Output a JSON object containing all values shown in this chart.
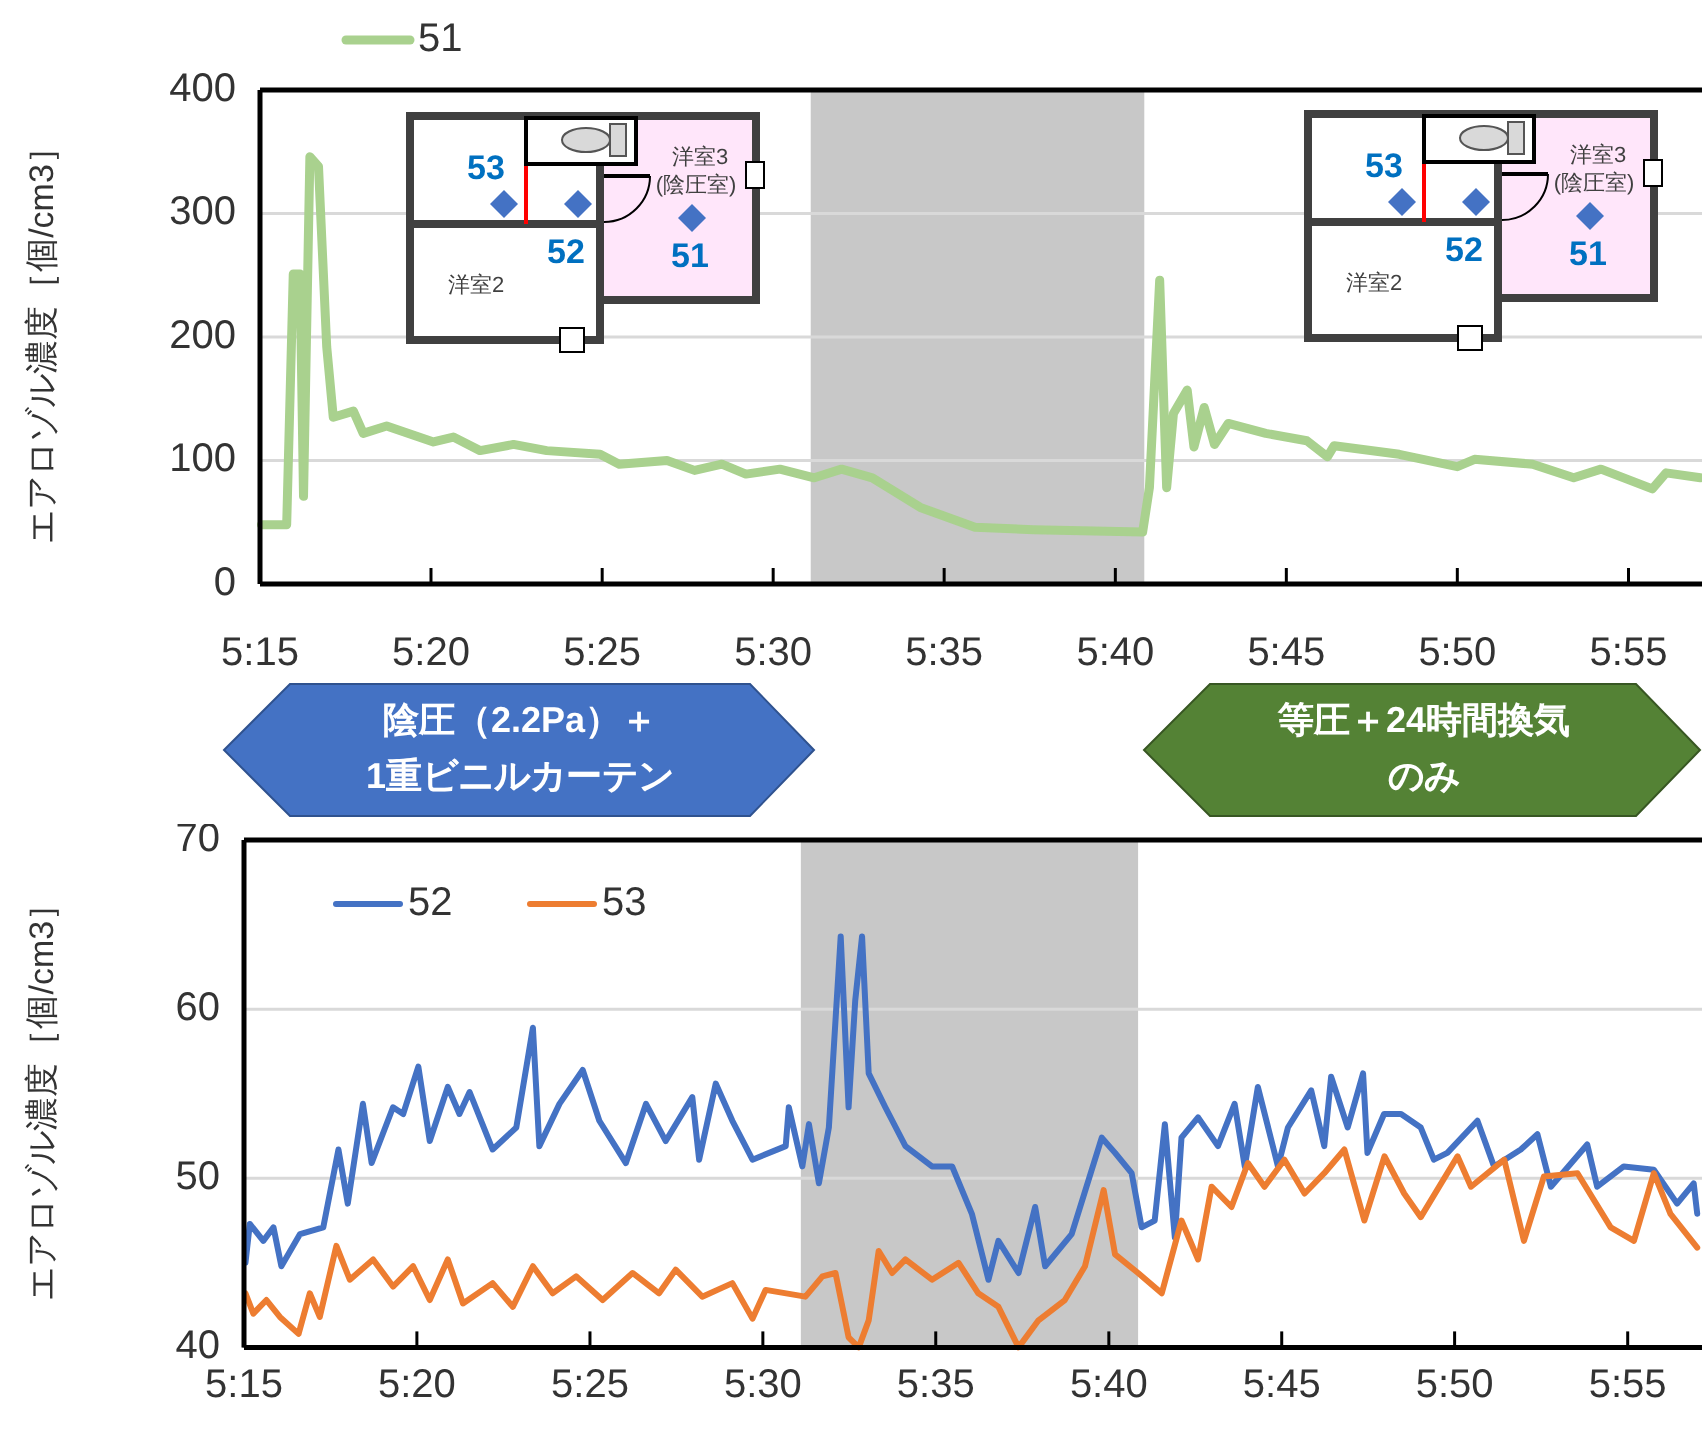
{
  "chart_data": [
    {
      "type": "line",
      "ylabel": "エアロゾル濃度［個/cm3］",
      "xlim": [
        5.25,
        5.9525
      ],
      "ylim": [
        0,
        400
      ],
      "yticks": [
        0,
        100,
        200,
        300,
        400
      ],
      "xticks": [
        {
          "value": 5.25,
          "label": "5:15"
        },
        {
          "value": 5.3333,
          "label": "5:20"
        },
        {
          "value": 5.4167,
          "label": "5:25"
        },
        {
          "value": 5.5,
          "label": "5:30"
        },
        {
          "value": 5.5833,
          "label": "5:35"
        },
        {
          "value": 5.6667,
          "label": "5:40"
        },
        {
          "value": 5.75,
          "label": "5:45"
        },
        {
          "value": 5.8333,
          "label": "5:50"
        },
        {
          "value": 5.9167,
          "label": "5:55"
        }
      ],
      "grid": "y",
      "legend": "top left",
      "bands": [
        {
          "axis": "x",
          "from": 5.5183,
          "to": 5.6808,
          "color": "#c8c8c8"
        }
      ],
      "series": [
        {
          "name": "51",
          "color": "#a9d18e",
          "x": [
            5.2507,
            5.263,
            5.2662,
            5.2695,
            5.2712,
            5.2743,
            5.2785,
            5.2825,
            5.2857,
            5.2955,
            5.3003,
            5.3117,
            5.3345,
            5.3442,
            5.3572,
            5.3735,
            5.3897,
            5.4157,
            5.425,
            5.4483,
            5.4617,
            5.475,
            5.4867,
            5.5033,
            5.52,
            5.5333,
            5.5483,
            5.5717,
            5.5983,
            5.6267,
            5.68,
            5.6833,
            5.6883,
            5.6917,
            5.695,
            5.7017,
            5.705,
            5.71,
            5.715,
            5.7217,
            5.74,
            5.76,
            5.77,
            5.7733,
            5.805,
            5.8333,
            5.8417,
            5.87,
            5.89,
            5.9033,
            5.9283,
            5.935,
            5.9517
          ],
          "values": [
            48,
            48,
            251,
            251,
            71,
            346,
            338,
            192,
            135,
            140,
            122,
            128,
            115,
            119,
            108,
            113,
            108,
            105,
            97,
            100,
            92,
            97,
            89,
            93,
            86,
            93,
            86,
            62,
            46,
            44,
            42,
            78,
            246,
            78,
            138,
            157,
            111,
            143,
            113,
            130,
            122,
            116,
            103,
            112,
            105,
            95,
            101,
            97,
            86,
            93,
            77,
            90,
            86
          ]
        }
      ],
      "annotations": [
        "53",
        "52",
        "51",
        "洋室3",
        "(陰圧室)",
        "洋室2",
        "53",
        "52",
        "51",
        "洋室3",
        "(陰圧室)",
        "洋室2",
        "陰圧（2.2Pa）＋",
        "1重ビニルカーテン",
        "等圧＋24時間換気",
        "のみ"
      ]
    },
    {
      "type": "line",
      "ylabel": "エアロゾル濃度［個/cm3］",
      "xlim": [
        5.25,
        5.9525
      ],
      "ylim": [
        40,
        70
      ],
      "yticks": [
        40,
        50,
        60,
        70
      ],
      "xticks": [
        {
          "value": 5.25,
          "label": "5:15"
        },
        {
          "value": 5.3333,
          "label": "5:20"
        },
        {
          "value": 5.4167,
          "label": "5:25"
        },
        {
          "value": 5.5,
          "label": "5:30"
        },
        {
          "value": 5.5833,
          "label": "5:35"
        },
        {
          "value": 5.6667,
          "label": "5:40"
        },
        {
          "value": 5.75,
          "label": "5:45"
        },
        {
          "value": 5.8333,
          "label": "5:50"
        },
        {
          "value": 5.9167,
          "label": "5:55"
        }
      ],
      "grid": "y",
      "legend": "top left",
      "bands": [
        {
          "axis": "x",
          "from": 5.5183,
          "to": 5.6808,
          "color": "#c8c8c8"
        }
      ],
      "series": [
        {
          "name": "52",
          "color": "#4472c4",
          "x": [
            5.2507,
            5.2528,
            5.2593,
            5.2642,
            5.268,
            5.277,
            5.2882,
            5.2955,
            5.3,
            5.3073,
            5.3115,
            5.3218,
            5.3267,
            5.334,
            5.3395,
            5.3482,
            5.3538,
            5.3587,
            5.3698,
            5.3812,
            5.3892,
            5.3923,
            5.402,
            5.4132,
            5.4212,
            5.434,
            5.4437,
            5.4532,
            5.466,
            5.4693,
            5.4773,
            5.4853,
            5.495,
            5.511,
            5.5125,
            5.519,
            5.5222,
            5.527,
            5.5318,
            5.5375,
            5.5413,
            5.5445,
            5.5478,
            5.551,
            5.559,
            5.5687,
            5.5815,
            5.5912,
            5.6007,
            5.6087,
            5.6135,
            5.6232,
            5.6312,
            5.636,
            5.6488,
            5.6633,
            5.6697,
            5.6777,
            5.6825,
            5.6888,
            5.6937,
            5.6985,
            5.7017,
            5.7097,
            5.7193,
            5.7273,
            5.7322,
            5.7385,
            5.7482,
            5.753,
            5.7642,
            5.7705,
            5.7738,
            5.7818,
            5.7892,
            5.7913,
            5.7993,
            5.8075,
            5.817,
            5.8233,
            5.8298,
            5.8443,
            5.8523,
            5.8652,
            5.8732,
            5.8797,
            5.8972,
            5.902,
            5.9148,
            5.9293,
            5.9405,
            5.9485,
            5.9502
          ],
          "values": [
            45.0,
            47.3,
            46.3,
            47.1,
            44.8,
            46.7,
            47.1,
            51.7,
            48.5,
            54.4,
            50.9,
            54.2,
            53.8,
            56.6,
            52.2,
            55.4,
            53.8,
            55.1,
            51.7,
            53.0,
            58.9,
            51.9,
            54.4,
            56.4,
            53.4,
            50.9,
            54.4,
            52.2,
            54.8,
            51.1,
            55.6,
            53.4,
            51.1,
            51.9,
            54.2,
            50.7,
            53.2,
            49.7,
            53.0,
            64.3,
            54.2,
            60.5,
            64.3,
            56.2,
            54.2,
            51.9,
            50.7,
            50.7,
            47.9,
            44.0,
            46.3,
            44.4,
            48.3,
            44.8,
            46.7,
            52.4,
            51.5,
            50.3,
            47.1,
            47.5,
            53.2,
            46.5,
            52.4,
            53.6,
            51.9,
            54.4,
            50.7,
            55.4,
            50.7,
            53.0,
            55.2,
            51.9,
            56.0,
            53.0,
            56.2,
            51.5,
            53.8,
            53.8,
            53.0,
            51.1,
            51.5,
            53.4,
            50.7,
            51.7,
            52.6,
            49.5,
            52.0,
            49.5,
            50.7,
            50.5,
            48.5,
            49.7,
            47.9
          ]
        },
        {
          "name": "53",
          "color": "#ed7d31",
          "x": [
            5.2507,
            5.2545,
            5.2608,
            5.2673,
            5.2763,
            5.2817,
            5.2865,
            5.2945,
            5.301,
            5.3122,
            5.3218,
            5.3315,
            5.3395,
            5.3482,
            5.3555,
            5.3698,
            5.3795,
            5.3892,
            5.3987,
            5.41,
            5.4228,
            5.4372,
            5.45,
            5.458,
            5.4708,
            5.4853,
            5.495,
            5.5013,
            5.5205,
            5.5287,
            5.535,
            5.5413,
            5.5462,
            5.551,
            5.5558,
            5.5623,
            5.5687,
            5.5815,
            5.5943,
            5.6038,
            5.6135,
            5.6232,
            5.6328,
            5.6455,
            5.6552,
            5.6642,
            5.6697,
            5.6808,
            5.6922,
            5.7017,
            5.7097,
            5.7162,
            5.7258,
            5.7337,
            5.7417,
            5.7513,
            5.761,
            5.7705,
            5.7802,
            5.7898,
            5.7995,
            5.809,
            5.817,
            5.8347,
            5.8412,
            5.8572,
            5.8667,
            5.8763,
            5.8925,
            5.9085,
            5.9197,
            5.9293,
            5.9373,
            5.9502
          ],
          "values": [
            43.2,
            42.0,
            42.8,
            41.8,
            40.8,
            43.2,
            41.8,
            46.0,
            44.0,
            45.2,
            43.6,
            44.8,
            42.8,
            45.2,
            42.6,
            43.8,
            42.4,
            44.8,
            43.2,
            44.2,
            42.8,
            44.4,
            43.2,
            44.6,
            43.0,
            43.8,
            41.7,
            43.4,
            43.0,
            44.2,
            44.4,
            40.6,
            40.0,
            41.6,
            45.7,
            44.4,
            45.2,
            44.0,
            45.0,
            43.2,
            42.4,
            40.0,
            41.6,
            42.8,
            44.8,
            49.3,
            45.5,
            44.4,
            43.2,
            47.5,
            45.2,
            49.5,
            48.3,
            50.9,
            49.5,
            51.1,
            49.1,
            50.3,
            51.7,
            47.5,
            51.3,
            49.1,
            47.7,
            51.3,
            49.5,
            51.1,
            46.3,
            50.1,
            50.3,
            47.1,
            46.3,
            50.3,
            47.9,
            45.9
          ]
        }
      ]
    }
  ]
}
